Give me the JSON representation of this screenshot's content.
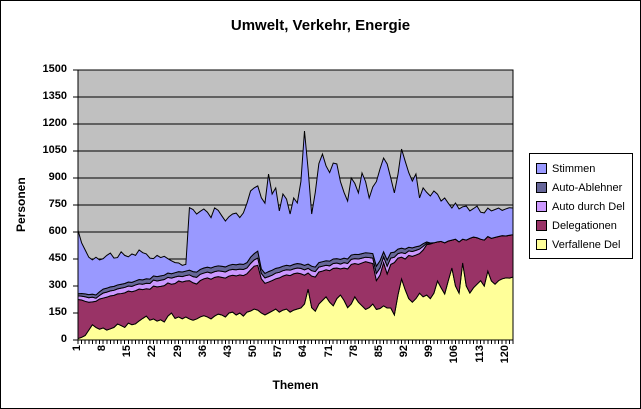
{
  "chart_data": {
    "type": "area",
    "stacked": true,
    "title": "Umwelt, Verkehr, Energie",
    "xlabel": "Themen",
    "ylabel": "Personen",
    "ylim": [
      0,
      1500
    ],
    "y_tick_step": 150,
    "y_ticks": [
      0,
      150,
      300,
      450,
      600,
      750,
      900,
      1050,
      1200,
      1350,
      1500
    ],
    "x_count": 122,
    "x_tick_labels": [
      "1",
      "8",
      "15",
      "22",
      "29",
      "36",
      "43",
      "50",
      "57",
      "64",
      "71",
      "78",
      "85",
      "92",
      "99",
      "106",
      "113",
      "120"
    ],
    "grid": true,
    "legend_position": "right",
    "plot_bg_color": "#C0C0C0",
    "outline_color": "#000000",
    "series": [
      {
        "name": "Stimmen",
        "color": "#9999FF",
        "values": [
          353,
          282,
          244,
          208,
          190,
          210,
          177,
          169,
          182,
          188,
          157,
          152,
          180,
          156,
          140,
          158,
          142,
          164,
          151,
          138,
          117,
          96,
          118,
          102,
          105,
          80,
          72,
          56,
          48,
          37,
          37,
          347,
          345,
          323,
          323,
          328,
          305,
          280,
          326,
          308,
          280,
          255,
          270,
          280,
          287,
          258,
          286,
          330,
          368,
          365,
          362,
          395,
          390,
          542,
          423,
          447,
          315,
          401,
          368,
          288,
          369,
          336,
          458,
          746,
          528,
          290,
          415,
          550,
          598,
          527,
          492,
          533,
          526,
          432,
          365,
          322,
          428,
          394,
          342,
          448,
          395,
          306,
          370,
          470,
          510,
          521,
          533,
          415,
          329,
          415,
          551,
          489,
          415,
          371,
          404,
          267,
          310,
          275,
          261,
          288,
          265,
          224,
          249,
          210,
          178,
          201,
          183,
          180,
          189,
          152,
          158,
          176,
          150,
          151,
          158,
          152,
          155,
          158,
          140,
          150,
          153,
          148
        ]
      },
      {
        "name": "Auto-Ablehner",
        "color": "#666699",
        "values": [
          12,
          14,
          16,
          17,
          17,
          18,
          20,
          22,
          22,
          22,
          22,
          22,
          22,
          22,
          22,
          22,
          22,
          24,
          24,
          25,
          24,
          23,
          24,
          24,
          24,
          24,
          24,
          24,
          25,
          26,
          25,
          26,
          28,
          29,
          27,
          28,
          27,
          28,
          28,
          28,
          28,
          28,
          27,
          28,
          28,
          28,
          28,
          30,
          35,
          35,
          39,
          25,
          25,
          28,
          28,
          26,
          26,
          25,
          25,
          24,
          25,
          25,
          24,
          25,
          24,
          25,
          25,
          25,
          25,
          25,
          26,
          25,
          24,
          26,
          25,
          25,
          24,
          24,
          25,
          25,
          25,
          25,
          25,
          40,
          40,
          28,
          35,
          30,
          28,
          25,
          25,
          25,
          20,
          20,
          20,
          17,
          15,
          7,
          3,
          0,
          0,
          0,
          0,
          0,
          0,
          0,
          0,
          0,
          0,
          0,
          0,
          0,
          0,
          0,
          0,
          0,
          0,
          0,
          0,
          0,
          0,
          0
        ]
      },
      {
        "name": "Auto durch Del",
        "color": "#CC99FF",
        "values": [
          20,
          22,
          25,
          25,
          26,
          17,
          20,
          28,
          28,
          28,
          28,
          28,
          30,
          30,
          28,
          30,
          32,
          29,
          30,
          30,
          32,
          33,
          33,
          34,
          34,
          31,
          34,
          36,
          27,
          30,
          30,
          32,
          34,
          37,
          35,
          32,
          33,
          34,
          32,
          32,
          34,
          34,
          33,
          32,
          34,
          32,
          34,
          32,
          35,
          35,
          40,
          30,
          30,
          30,
          30,
          32,
          31,
          30,
          28,
          30,
          27,
          28,
          30,
          30,
          26,
          30,
          30,
          27,
          27,
          25,
          27,
          27,
          28,
          27,
          30,
          30,
          28,
          27,
          30,
          27,
          25,
          28,
          30,
          40,
          40,
          32,
          43,
          35,
          30,
          25,
          25,
          30,
          25,
          27,
          26,
          25,
          20,
          8,
          3,
          0,
          0,
          0,
          0,
          0,
          0,
          0,
          0,
          0,
          0,
          0,
          0,
          0,
          0,
          0,
          0,
          0,
          0,
          0,
          0,
          0,
          0,
          0
        ]
      },
      {
        "name": "Delegationen",
        "color": "#993366",
        "values": [
          217,
          207,
          190,
          155,
          127,
          145,
          168,
          166,
          183,
          183,
          178,
          167,
          178,
          192,
          178,
          183,
          184,
          177,
          160,
          152,
          172,
          183,
          190,
          186,
          202,
          184,
          160,
          194,
          200,
          204,
          200,
          213,
          208,
          194,
          202,
          205,
          217,
          221,
          215,
          208,
          209,
          216,
          205,
          205,
          217,
          212,
          225,
          213,
          229,
          238,
          249,
          190,
          176,
          172,
          169,
          168,
          190,
          189,
          190,
          203,
          202,
          200,
          190,
          160,
          89,
          175,
          190,
          178,
          163,
          150,
          175,
          208,
          170,
          145,
          180,
          215,
          220,
          185,
          210,
          238,
          265,
          250,
          225,
          160,
          185,
          240,
          189,
          242,
          290,
          205,
          121,
          170,
          240,
          255,
          242,
          220,
          260,
          280,
          303,
          280,
          217,
          258,
          284,
          220,
          155,
          260,
          285,
          132,
          255,
          304,
          282,
          258,
          230,
          255,
          192,
          237,
          260,
          245,
          240,
          233,
          238,
          235
        ]
      },
      {
        "name": "Verfallene Del",
        "color": "#FFFF99",
        "values": [
          8,
          15,
          25,
          55,
          85,
          70,
          60,
          67,
          55,
          62,
          70,
          89,
          80,
          70,
          94,
          85,
          90,
          106,
          120,
          133,
          110,
          117,
          105,
          112,
          100,
          133,
          150,
          120,
          128,
          118,
          128,
          117,
          110,
          117,
          128,
          135,
          128,
          117,
          133,
          144,
          139,
          128,
          150,
          155,
          139,
          150,
          133,
          155,
          161,
          172,
          166,
          150,
          139,
          150,
          161,
          172,
          155,
          166,
          172,
          155,
          166,
          172,
          178,
          200,
          283,
          180,
          160,
          200,
          220,
          240,
          210,
          190,
          230,
          250,
          220,
          180,
          200,
          240,
          210,
          190,
          170,
          180,
          200,
          170,
          175,
          190,
          178,
          178,
          140,
          250,
          339,
          280,
          230,
          210,
          230,
          260,
          240,
          250,
          230,
          260,
          328,
          290,
          256,
          330,
          400,
          300,
          260,
          428,
          300,
          261,
          290,
          310,
          330,
          300,
          383,
          328,
          310,
          330,
          340,
          345,
          344,
          350
        ]
      }
    ]
  }
}
